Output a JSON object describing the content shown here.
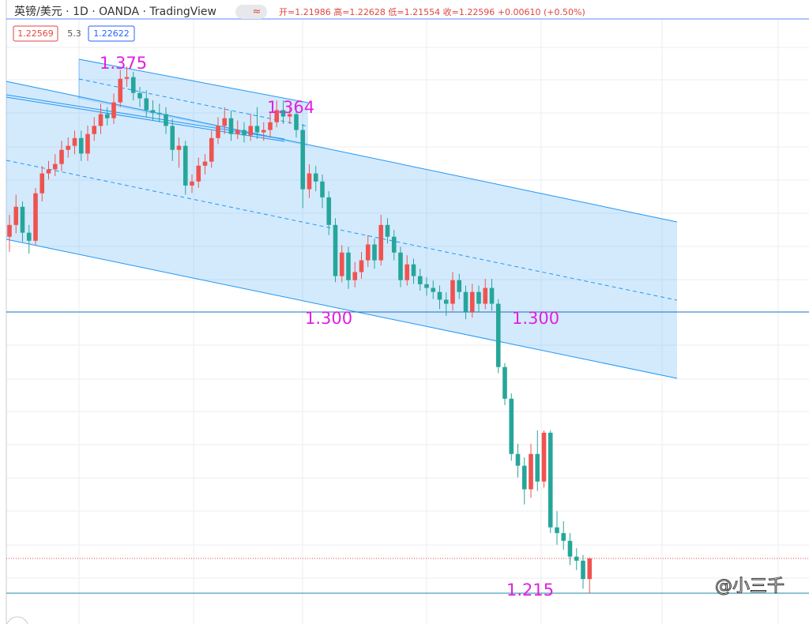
{
  "header": {
    "symbol": "英镑/美元 · 1D · OANDA · TradingView",
    "toggle": "≈",
    "ohlc_text": "开=1.21986 高=1.22628 低=1.21554 收=1.22596 +0.00610 (+0.50%)",
    "badges": [
      "1.22569",
      "5.3",
      "1.22622"
    ]
  },
  "watermark": "@小三千",
  "chart_data": {
    "type": "candlestick",
    "up_color": "#ef5350",
    "down_color": "#26a69a",
    "ylim": [
      1.2065,
      1.3789
    ],
    "annotations": [
      "1.375",
      "1.364",
      "1.300",
      "1.300",
      "1.215"
    ],
    "open": [
      1.3215,
      1.325,
      1.3304,
      1.3227,
      1.3203,
      1.3344,
      1.3403,
      1.3415,
      1.3431,
      1.3473,
      1.3485,
      1.3508,
      1.3462,
      1.352,
      1.3544,
      1.3579,
      1.3567,
      1.3614,
      1.3684,
      1.3689,
      1.3642,
      1.3626,
      1.3591,
      1.3583,
      1.3579,
      1.3544,
      1.3473,
      1.3485,
      1.3367,
      1.3379,
      1.3426,
      1.3438,
      1.3508,
      1.3544,
      1.3567,
      1.352,
      1.3532,
      1.3516,
      1.3544,
      1.3525,
      1.3532,
      1.3555,
      1.3591,
      1.3572,
      1.3579,
      1.3532,
      1.3356,
      1.3403,
      1.3379,
      1.3332,
      1.325,
      1.3098,
      1.3168,
      1.3086,
      1.311,
      1.3145,
      1.3192,
      1.3145,
      1.325,
      1.3215,
      1.3168,
      1.3086,
      1.3133,
      1.3098,
      1.3074,
      1.3063,
      1.3051,
      1.3028,
      1.3016,
      1.3086,
      1.3051,
      1.2992,
      1.3051,
      1.3016,
      1.3063,
      1.3016,
      1.2828,
      1.2734,
      1.257,
      1.2535,
      1.2465,
      1.257,
      1.2488,
      1.2633,
      1.2352,
      1.2335,
      1.2312,
      1.2265,
      1.2253,
      1.21986
    ],
    "high": [
      1.328,
      1.334,
      1.332,
      1.325,
      1.336,
      1.3425,
      1.344,
      1.346,
      1.35,
      1.351,
      1.353,
      1.353,
      1.3545,
      1.357,
      1.361,
      1.36,
      1.364,
      1.371,
      1.372,
      1.3705,
      1.366,
      1.365,
      1.362,
      1.361,
      1.36,
      1.3565,
      1.351,
      1.35,
      1.34,
      1.345,
      1.346,
      1.353,
      1.357,
      1.36,
      1.359,
      1.356,
      1.3555,
      1.358,
      1.36,
      1.3555,
      1.3585,
      1.362,
      1.362,
      1.3605,
      1.36,
      1.355,
      1.343,
      1.3425,
      1.34,
      1.335,
      1.327,
      1.319,
      1.3185,
      1.314,
      1.317,
      1.322,
      1.321,
      1.328,
      1.327,
      1.3235,
      1.3185,
      1.316,
      1.315,
      1.312,
      1.3095,
      1.3085,
      1.307,
      1.305,
      1.311,
      1.3105,
      1.307,
      1.3075,
      1.307,
      1.309,
      1.309,
      1.303,
      1.284,
      1.275,
      1.26,
      1.256,
      1.26,
      1.264,
      1.264,
      1.264,
      1.24,
      1.237,
      1.2335,
      1.229,
      1.227,
      1.22628
    ],
    "low": [
      1.317,
      1.3225,
      1.32,
      1.3165,
      1.319,
      1.332,
      1.3385,
      1.3395,
      1.341,
      1.345,
      1.346,
      1.344,
      1.344,
      1.35,
      1.352,
      1.3545,
      1.355,
      1.36,
      1.366,
      1.362,
      1.36,
      1.357,
      1.356,
      1.3555,
      1.352,
      1.344,
      1.342,
      1.334,
      1.3345,
      1.336,
      1.34,
      1.342,
      1.349,
      1.352,
      1.35,
      1.3505,
      1.3495,
      1.35,
      1.3505,
      1.35,
      1.351,
      1.354,
      1.355,
      1.355,
      1.351,
      1.33,
      1.333,
      1.335,
      1.33,
      1.322,
      1.308,
      1.308,
      1.306,
      1.3065,
      1.309,
      1.3125,
      1.312,
      1.313,
      1.3195,
      1.3145,
      1.3065,
      1.307,
      1.3075,
      1.3055,
      1.304,
      1.303,
      1.3,
      1.298,
      1.2995,
      1.303,
      1.297,
      1.2975,
      1.299,
      1.3,
      1.2995,
      1.281,
      1.2715,
      1.255,
      1.25,
      1.242,
      1.244,
      1.246,
      1.247,
      1.2335,
      1.23,
      1.2285,
      1.224,
      1.2225,
      1.217,
      1.21554
    ],
    "close": [
      1.325,
      1.3304,
      1.3227,
      1.3203,
      1.3344,
      1.3403,
      1.3415,
      1.3431,
      1.3473,
      1.3485,
      1.3508,
      1.3462,
      1.352,
      1.3544,
      1.3579,
      1.3567,
      1.3614,
      1.3684,
      1.3689,
      1.3642,
      1.3626,
      1.3591,
      1.3583,
      1.3579,
      1.3544,
      1.3473,
      1.3485,
      1.3367,
      1.3379,
      1.3426,
      1.3438,
      1.3508,
      1.3544,
      1.3567,
      1.352,
      1.3532,
      1.3516,
      1.3544,
      1.3525,
      1.3532,
      1.3555,
      1.3591,
      1.3572,
      1.3579,
      1.3532,
      1.3356,
      1.3403,
      1.3379,
      1.3332,
      1.325,
      1.3098,
      1.3168,
      1.3086,
      1.311,
      1.3145,
      1.3192,
      1.3145,
      1.325,
      1.3215,
      1.3168,
      1.3086,
      1.3133,
      1.3098,
      1.3074,
      1.3063,
      1.3051,
      1.3028,
      1.3016,
      1.3086,
      1.3051,
      1.2992,
      1.3051,
      1.3016,
      1.3063,
      1.3016,
      1.2828,
      1.2734,
      1.257,
      1.2535,
      1.2465,
      1.257,
      1.2488,
      1.2633,
      1.2352,
      1.2335,
      1.2312,
      1.2265,
      1.2253,
      1.21986,
      1.22596
    ]
  }
}
